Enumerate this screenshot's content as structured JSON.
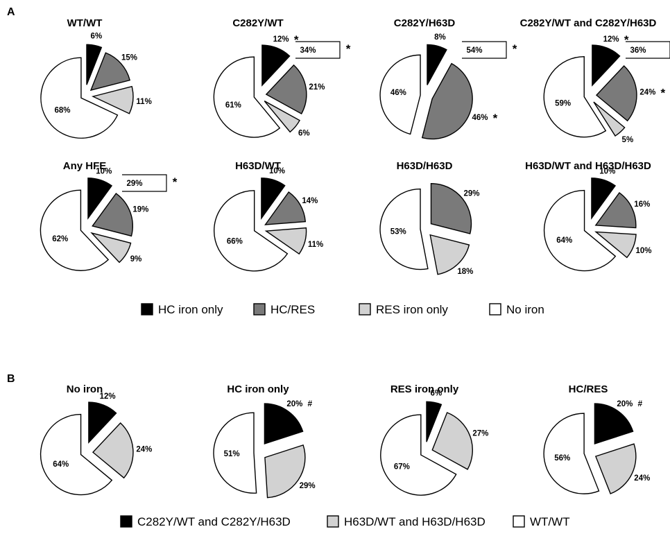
{
  "panels": [
    {
      "label": "A",
      "legend": [
        {
          "label": "HC iron only",
          "color": "#000000"
        },
        {
          "label": "HC/RES",
          "color": "#7a7a7a"
        },
        {
          "label": "RES iron only",
          "color": "#d2d2d2"
        },
        {
          "label": "No iron",
          "color": "#ffffff"
        }
      ]
    },
    {
      "label": "B",
      "legend": [
        {
          "label": "C282Y/WT and C282Y/H63D",
          "color": "#000000"
        },
        {
          "label": "H63D/WT and H63D/H63D",
          "color": "#d2d2d2"
        },
        {
          "label": "WT/WT",
          "color": "#ffffff"
        }
      ]
    }
  ],
  "chart_data": [
    {
      "type": "pie",
      "panel": "A",
      "title": "WT/WT",
      "slices": [
        {
          "category": "HC iron only",
          "value": 6,
          "label": "6%"
        },
        {
          "category": "HC/RES",
          "value": 15,
          "label": "15%"
        },
        {
          "category": "RES iron only",
          "value": 11,
          "label": "11%"
        },
        {
          "category": "No iron",
          "value": 68,
          "label": "68%"
        }
      ]
    },
    {
      "type": "pie",
      "panel": "A",
      "title": "C282Y/WT",
      "slices": [
        {
          "category": "HC iron only",
          "value": 12,
          "label": "12%",
          "marker": "*"
        },
        {
          "category": "HC/RES",
          "value": 21,
          "label": "21%"
        },
        {
          "category": "RES iron only",
          "value": 6,
          "label": "6%"
        },
        {
          "category": "No iron",
          "value": 61,
          "label": "61%"
        }
      ],
      "bracket": {
        "label": "34%",
        "marker": "*"
      }
    },
    {
      "type": "pie",
      "panel": "A",
      "title": "C282Y/H63D",
      "slices": [
        {
          "category": "HC iron only",
          "value": 8,
          "label": "8%"
        },
        {
          "category": "HC/RES",
          "value": 46,
          "label": "46%",
          "marker": "*"
        },
        {
          "category": "RES iron only",
          "value": 0,
          "label": ""
        },
        {
          "category": "No iron",
          "value": 46,
          "label": "46%"
        }
      ],
      "bracket": {
        "label": "54%",
        "marker": "*"
      }
    },
    {
      "type": "pie",
      "panel": "A",
      "title": "C282Y/WT and C282Y/H63D",
      "slices": [
        {
          "category": "HC iron only",
          "value": 12,
          "label": "12%",
          "marker": "*"
        },
        {
          "category": "HC/RES",
          "value": 24,
          "label": "24%",
          "marker": "*"
        },
        {
          "category": "RES iron only",
          "value": 5,
          "label": "5%"
        },
        {
          "category": "No iron",
          "value": 59,
          "label": "59%"
        }
      ],
      "bracket": {
        "label": "36%",
        "marker": "*"
      }
    },
    {
      "type": "pie",
      "panel": "A",
      "title": "Any HFE",
      "slices": [
        {
          "category": "HC iron only",
          "value": 10,
          "label": "10%"
        },
        {
          "category": "HC/RES",
          "value": 19,
          "label": "19%"
        },
        {
          "category": "RES iron only",
          "value": 9,
          "label": "9%"
        },
        {
          "category": "No iron",
          "value": 62,
          "label": "62%"
        }
      ],
      "bracket": {
        "label": "29%",
        "marker": "*"
      }
    },
    {
      "type": "pie",
      "panel": "A",
      "title": "H63D/WT",
      "slices": [
        {
          "category": "HC iron only",
          "value": 10,
          "label": "10%"
        },
        {
          "category": "HC/RES",
          "value": 14,
          "label": "14%"
        },
        {
          "category": "RES iron only",
          "value": 11,
          "label": "11%"
        },
        {
          "category": "No iron",
          "value": 66,
          "label": "66%"
        }
      ]
    },
    {
      "type": "pie",
      "panel": "A",
      "title": "H63D/H63D",
      "slices": [
        {
          "category": "HC iron only",
          "value": 0,
          "label": ""
        },
        {
          "category": "HC/RES",
          "value": 29,
          "label": "29%"
        },
        {
          "category": "RES iron only",
          "value": 18,
          "label": "18%"
        },
        {
          "category": "No iron",
          "value": 53,
          "label": "53%"
        }
      ]
    },
    {
      "type": "pie",
      "panel": "A",
      "title": "H63D/WT and H63D/H63D",
      "slices": [
        {
          "category": "HC iron only",
          "value": 10,
          "label": "10%"
        },
        {
          "category": "HC/RES",
          "value": 16,
          "label": "16%"
        },
        {
          "category": "RES iron only",
          "value": 10,
          "label": "10%"
        },
        {
          "category": "No iron",
          "value": 64,
          "label": "64%"
        }
      ]
    },
    {
      "type": "pie",
      "panel": "B",
      "title": "No iron",
      "slices": [
        {
          "category": "C282Y/WT and C282Y/H63D",
          "value": 12,
          "label": "12%"
        },
        {
          "category": "H63D/WT and H63D/H63D",
          "value": 24,
          "label": "24%"
        },
        {
          "category": "WT/WT",
          "value": 64,
          "label": "64%"
        }
      ]
    },
    {
      "type": "pie",
      "panel": "B",
      "title": "HC iron only",
      "slices": [
        {
          "category": "C282Y/WT and C282Y/H63D",
          "value": 20,
          "label": "20%",
          "marker": "#"
        },
        {
          "category": "H63D/WT and H63D/H63D",
          "value": 29,
          "label": "29%"
        },
        {
          "category": "WT/WT",
          "value": 51,
          "label": "51%"
        }
      ]
    },
    {
      "type": "pie",
      "panel": "B",
      "title": "RES iron only",
      "slices": [
        {
          "category": "C282Y/WT and C282Y/H63D",
          "value": 6,
          "label": "6%"
        },
        {
          "category": "H63D/WT and H63D/H63D",
          "value": 27,
          "label": "27%"
        },
        {
          "category": "WT/WT",
          "value": 67,
          "label": "67%"
        }
      ]
    },
    {
      "type": "pie",
      "panel": "B",
      "title": "HC/RES",
      "slices": [
        {
          "category": "C282Y/WT and C282Y/H63D",
          "value": 20,
          "label": "20%",
          "marker": "#"
        },
        {
          "category": "H63D/WT and H63D/H63D",
          "value": 24,
          "label": "24%"
        },
        {
          "category": "WT/WT",
          "value": 56,
          "label": "56%"
        }
      ]
    }
  ]
}
